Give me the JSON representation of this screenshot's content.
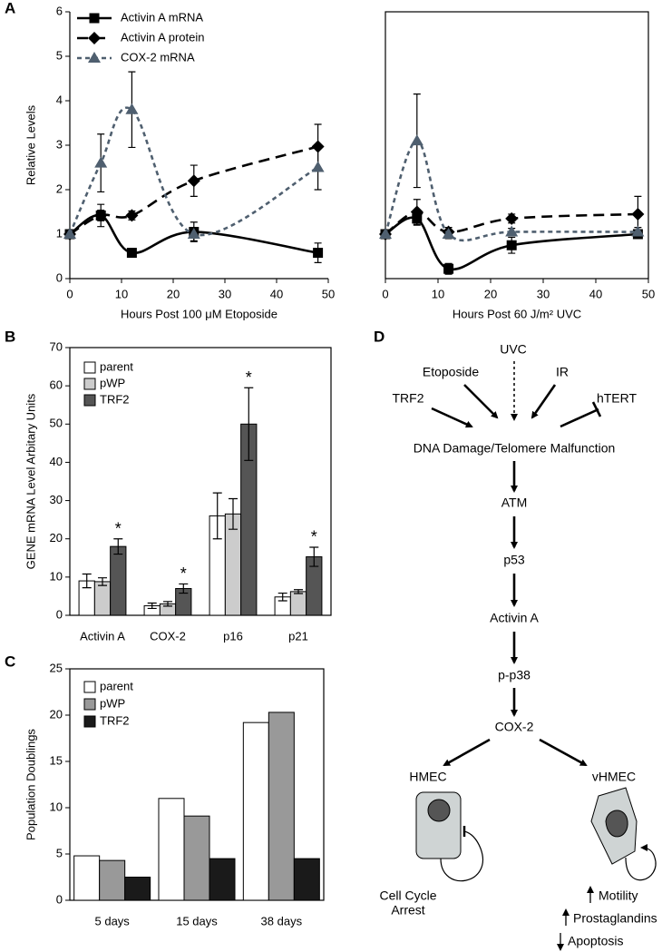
{
  "chart_data": [
    {
      "type": "line",
      "panel": "A",
      "x_label": "Hours Post 100 μM Etoposide",
      "y_label": "Relative Levels",
      "x": [
        0,
        6,
        12,
        24,
        48
      ],
      "xlim": [
        0,
        50
      ],
      "xticks": [
        0,
        10,
        20,
        30,
        40,
        50
      ],
      "ylim": [
        0,
        6
      ],
      "yticks": [
        0,
        1,
        2,
        3,
        4,
        5,
        6
      ],
      "legend": "upper left",
      "series": [
        {
          "name": "Activin A mRNA",
          "color": "#000000",
          "linestyle": "solid",
          "marker": "square",
          "values": [
            1,
            1.42,
            0.58,
            1.05,
            0.58
          ],
          "errors": [
            null,
            0.25,
            0.05,
            0.22,
            0.22
          ]
        },
        {
          "name": "Activin A protein",
          "color": "#000000",
          "linestyle": "dashed",
          "marker": "diamond",
          "values": [
            1,
            1.42,
            1.42,
            2.2,
            2.97
          ],
          "errors": [
            null,
            0.12,
            0.1,
            0.35,
            0.5
          ]
        },
        {
          "name": "COX-2 mRNA",
          "color": "#4f5f6f",
          "linestyle": "dotted",
          "marker": "triangle",
          "values": [
            1,
            2.6,
            3.8,
            1.0,
            2.5
          ],
          "errors": [
            null,
            0.65,
            0.85,
            0.15,
            0.5
          ]
        }
      ]
    },
    {
      "type": "line",
      "x_label": "Hours Post 60 J/m² UVC",
      "x": [
        0,
        6,
        12,
        24,
        48
      ],
      "xlim": [
        0,
        50
      ],
      "xticks": [
        0,
        10,
        20,
        30,
        40,
        50
      ],
      "ylim": [
        0,
        6
      ],
      "series": [
        {
          "color": "#000000",
          "linestyle": "solid",
          "marker": "square",
          "values": [
            1,
            1.35,
            0.22,
            0.75,
            1.0
          ],
          "errors": [
            null,
            0.15,
            0.12,
            0.18,
            0.1
          ]
        },
        {
          "color": "#000000",
          "linestyle": "dashed",
          "marker": "diamond",
          "values": [
            1,
            1.5,
            1.05,
            1.35,
            1.45
          ],
          "errors": [
            null,
            0.28,
            0.1,
            0.1,
            0.4
          ]
        },
        {
          "color": "#4f5f6f",
          "linestyle": "dotted",
          "marker": "triangle",
          "values": [
            1,
            3.1,
            1.0,
            1.05,
            1.05
          ],
          "errors": [
            null,
            1.05,
            0.1,
            0.08,
            0.1
          ]
        }
      ]
    },
    {
      "type": "bar",
      "panel": "B",
      "y_label": "GENE mRNA Level Arbitary Units",
      "categories": [
        "Activin A",
        "COX-2",
        "p16",
        "p21"
      ],
      "ylim": [
        0,
        70
      ],
      "yticks": [
        0,
        10,
        20,
        30,
        40,
        50,
        60,
        70
      ],
      "legend": "upper left",
      "series": [
        {
          "name": "parent",
          "color": "#ffffff",
          "values": [
            9,
            2.5,
            26,
            4.8
          ],
          "errors": [
            1.8,
            0.7,
            6,
            1
          ]
        },
        {
          "name": "pWP",
          "color": "#cccccc",
          "values": [
            8.8,
            3,
            26.5,
            6.2
          ],
          "errors": [
            1,
            0.6,
            4,
            0.5
          ]
        },
        {
          "name": "TRF2",
          "color": "#555555",
          "values": [
            18,
            7,
            50,
            15.3
          ],
          "errors": [
            2,
            1.2,
            9.5,
            2.5
          ],
          "significance": [
            "*",
            "*",
            "*",
            "*"
          ]
        }
      ]
    },
    {
      "type": "bar",
      "panel": "C",
      "y_label": "Population Doublings",
      "categories": [
        "5 days",
        "15 days",
        "38 days"
      ],
      "ylim": [
        0,
        25
      ],
      "yticks": [
        0,
        5,
        10,
        15,
        20,
        25
      ],
      "legend": "upper left",
      "series": [
        {
          "name": "parent",
          "color": "#ffffff",
          "values": [
            4.8,
            11,
            19.2
          ]
        },
        {
          "name": "pWP",
          "color": "#999999",
          "values": [
            4.3,
            9.1,
            20.3
          ]
        },
        {
          "name": "TRF2",
          "color": "#1a1a1a",
          "values": [
            2.5,
            4.5,
            4.5
          ]
        }
      ]
    }
  ],
  "diagram": {
    "panel": "D",
    "nodes": [
      {
        "label": "UVC"
      },
      {
        "label": "Etoposide"
      },
      {
        "label": "IR"
      },
      {
        "label": "TRF2"
      },
      {
        "label": "hTERT"
      },
      {
        "label": "DNA Damage/Telomere Malfunction"
      },
      {
        "label": "ATM"
      },
      {
        "label": "p53"
      },
      {
        "label": "Activin A"
      },
      {
        "label": "p-p38"
      },
      {
        "label": "COX-2"
      },
      {
        "label": "HMEC"
      },
      {
        "label": "vHMEC"
      },
      {
        "label": "Cell Cycle"
      },
      {
        "label": "Arrest"
      },
      {
        "label": "Motility"
      },
      {
        "label": "Prostaglandins"
      },
      {
        "label": "Apoptosis"
      }
    ]
  }
}
